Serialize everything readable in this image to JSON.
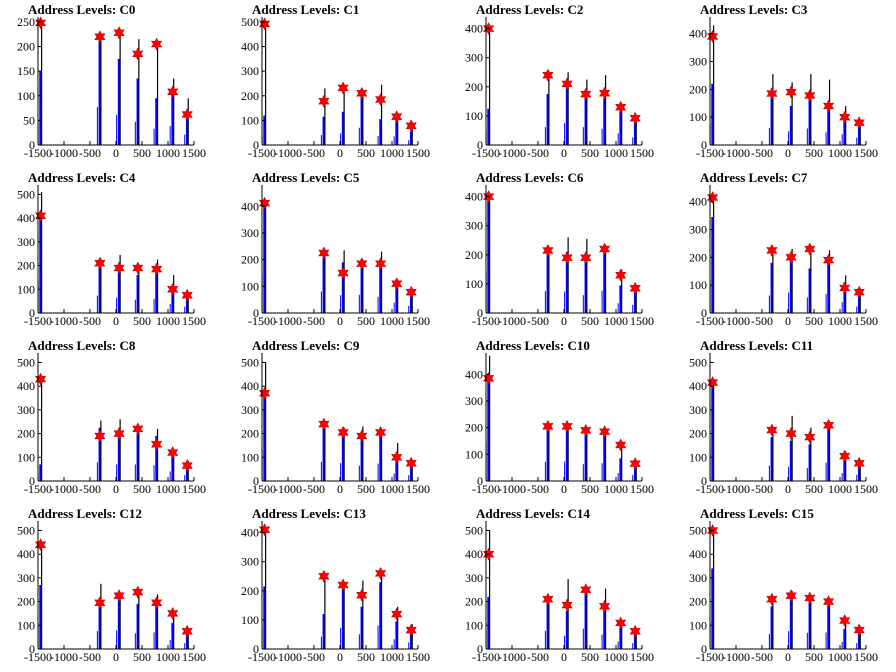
{
  "colors": {
    "sum_line": "#000000",
    "peak_line": "#0000ff",
    "marker": "#ff0000",
    "frame": "#000000"
  },
  "marker_icon": "red-star-marker",
  "x_ticks": [
    "-1500",
    "-1000",
    "-500",
    "0",
    "500",
    "1000",
    "1500"
  ],
  "chart_data": [
    {
      "type": "histogram",
      "title": "Address Levels: C0",
      "xlim": [
        -1500,
        1500
      ],
      "ylim": [
        0,
        260
      ],
      "y_ticks": [
        0,
        50,
        100,
        150,
        200,
        250
      ],
      "peaks": [
        {
          "x": -1450,
          "total": 255,
          "component": 150,
          "marker": 248
        },
        {
          "x": -310,
          "total": 222,
          "component": 220,
          "marker": 220
        },
        {
          "x": 60,
          "total": 235,
          "component": 175,
          "marker": 228
        },
        {
          "x": 420,
          "total": 215,
          "component": 135,
          "marker": 185
        },
        {
          "x": 780,
          "total": 205,
          "component": 95,
          "marker": 205
        },
        {
          "x": 1090,
          "total": 135,
          "component": 110,
          "marker": 108
        },
        {
          "x": 1370,
          "total": 95,
          "component": 60,
          "marker": 62
        }
      ]
    },
    {
      "type": "histogram",
      "title": "Address Levels: C1",
      "xlim": [
        -1500,
        1500
      ],
      "ylim": [
        0,
        520
      ],
      "y_ticks": [
        0,
        100,
        200,
        300,
        400,
        500
      ],
      "peaks": [
        {
          "x": -1450,
          "total": 500,
          "component": 120,
          "marker": 492
        },
        {
          "x": -310,
          "total": 230,
          "component": 115,
          "marker": 178
        },
        {
          "x": 60,
          "total": 240,
          "component": 135,
          "marker": 232
        },
        {
          "x": 420,
          "total": 215,
          "component": 200,
          "marker": 210
        },
        {
          "x": 780,
          "total": 245,
          "component": 105,
          "marker": 185
        },
        {
          "x": 1090,
          "total": 125,
          "component": 100,
          "marker": 115
        },
        {
          "x": 1370,
          "total": 85,
          "component": 55,
          "marker": 78
        }
      ]
    },
    {
      "type": "histogram",
      "title": "Address Levels: C2",
      "xlim": [
        -1500,
        1500
      ],
      "ylim": [
        0,
        440
      ],
      "y_ticks": [
        0,
        100,
        200,
        300,
        400
      ],
      "peaks": [
        {
          "x": -1450,
          "total": 410,
          "component": 125,
          "marker": 400
        },
        {
          "x": -310,
          "total": 255,
          "component": 175,
          "marker": 240
        },
        {
          "x": 60,
          "total": 250,
          "component": 215,
          "marker": 210
        },
        {
          "x": 420,
          "total": 225,
          "component": 175,
          "marker": 175
        },
        {
          "x": 780,
          "total": 240,
          "component": 160,
          "marker": 178
        },
        {
          "x": 1090,
          "total": 140,
          "component": 115,
          "marker": 130
        },
        {
          "x": 1370,
          "total": 100,
          "component": 75,
          "marker": 92
        }
      ]
    },
    {
      "type": "histogram",
      "title": "Address Levels: C3",
      "xlim": [
        -1500,
        1500
      ],
      "ylim": [
        0,
        460
      ],
      "y_ticks": [
        0,
        100,
        200,
        300,
        400
      ],
      "peaks": [
        {
          "x": -1450,
          "total": 430,
          "component": 220,
          "marker": 390
        },
        {
          "x": -310,
          "total": 255,
          "component": 175,
          "marker": 185
        },
        {
          "x": 60,
          "total": 225,
          "component": 140,
          "marker": 190
        },
        {
          "x": 420,
          "total": 255,
          "component": 170,
          "marker": 178
        },
        {
          "x": 780,
          "total": 235,
          "component": 130,
          "marker": 140
        },
        {
          "x": 1090,
          "total": 140,
          "component": 110,
          "marker": 100
        },
        {
          "x": 1370,
          "total": 90,
          "component": 75,
          "marker": 80
        }
      ]
    },
    {
      "type": "histogram",
      "title": "Address Levels: C4",
      "xlim": [
        -1500,
        1500
      ],
      "ylim": [
        0,
        540
      ],
      "y_ticks": [
        0,
        100,
        200,
        300,
        400,
        500
      ],
      "peaks": [
        {
          "x": -1450,
          "total": 510,
          "component": 400,
          "marker": 410
        },
        {
          "x": -310,
          "total": 230,
          "component": 210,
          "marker": 210
        },
        {
          "x": 60,
          "total": 245,
          "component": 185,
          "marker": 190
        },
        {
          "x": 420,
          "total": 200,
          "component": 160,
          "marker": 190
        },
        {
          "x": 780,
          "total": 225,
          "component": 170,
          "marker": 185
        },
        {
          "x": 1090,
          "total": 160,
          "component": 110,
          "marker": 100
        },
        {
          "x": 1370,
          "total": 90,
          "component": 75,
          "marker": 75
        }
      ]
    },
    {
      "type": "histogram",
      "title": "Address Levels: C5",
      "xlim": [
        -1500,
        1500
      ],
      "ylim": [
        0,
        480
      ],
      "y_ticks": [
        0,
        100,
        200,
        300,
        400
      ],
      "peaks": [
        {
          "x": -1450,
          "total": 415,
          "component": 400,
          "marker": 412
        },
        {
          "x": -310,
          "total": 230,
          "component": 230,
          "marker": 225
        },
        {
          "x": 60,
          "total": 235,
          "component": 190,
          "marker": 150
        },
        {
          "x": 420,
          "total": 200,
          "component": 195,
          "marker": 185
        },
        {
          "x": 780,
          "total": 230,
          "component": 175,
          "marker": 185
        },
        {
          "x": 1090,
          "total": 125,
          "component": 110,
          "marker": 110
        },
        {
          "x": 1370,
          "total": 90,
          "component": 75,
          "marker": 78
        }
      ]
    },
    {
      "type": "histogram",
      "title": "Address Levels: C6",
      "xlim": [
        -1500,
        1500
      ],
      "ylim": [
        0,
        440
      ],
      "y_ticks": [
        0,
        100,
        200,
        300,
        400
      ],
      "peaks": [
        {
          "x": -1450,
          "total": 410,
          "component": 405,
          "marker": 400
        },
        {
          "x": -310,
          "total": 225,
          "component": 215,
          "marker": 215
        },
        {
          "x": 60,
          "total": 260,
          "component": 210,
          "marker": 190
        },
        {
          "x": 420,
          "total": 255,
          "component": 175,
          "marker": 190
        },
        {
          "x": 780,
          "total": 225,
          "component": 220,
          "marker": 220
        },
        {
          "x": 1090,
          "total": 150,
          "component": 95,
          "marker": 130
        },
        {
          "x": 1370,
          "total": 95,
          "component": 80,
          "marker": 85
        }
      ]
    },
    {
      "type": "histogram",
      "title": "Address Levels: C7",
      "xlim": [
        -1500,
        1500
      ],
      "ylim": [
        0,
        460
      ],
      "y_ticks": [
        0,
        100,
        200,
        300,
        400
      ],
      "peaks": [
        {
          "x": -1450,
          "total": 425,
          "component": 345,
          "marker": 415
        },
        {
          "x": -310,
          "total": 230,
          "component": 180,
          "marker": 225
        },
        {
          "x": 60,
          "total": 230,
          "component": 210,
          "marker": 200
        },
        {
          "x": 420,
          "total": 230,
          "component": 160,
          "marker": 230
        },
        {
          "x": 780,
          "total": 225,
          "component": 195,
          "marker": 190
        },
        {
          "x": 1090,
          "total": 135,
          "component": 110,
          "marker": 90
        },
        {
          "x": 1370,
          "total": 80,
          "component": 65,
          "marker": 75
        }
      ]
    },
    {
      "type": "histogram",
      "title": "Address Levels: C8",
      "xlim": [
        -1500,
        1500
      ],
      "ylim": [
        0,
        540
      ],
      "y_ticks": [
        0,
        100,
        200,
        300,
        400,
        500
      ],
      "peaks": [
        {
          "x": -1450,
          "total": 440,
          "component": 70,
          "marker": 430
        },
        {
          "x": -310,
          "total": 255,
          "component": 225,
          "marker": 190
        },
        {
          "x": 60,
          "total": 260,
          "component": 200,
          "marker": 200
        },
        {
          "x": 420,
          "total": 225,
          "component": 200,
          "marker": 220
        },
        {
          "x": 780,
          "total": 220,
          "component": 190,
          "marker": 155
        },
        {
          "x": 1090,
          "total": 130,
          "component": 115,
          "marker": 120
        },
        {
          "x": 1370,
          "total": 85,
          "component": 70,
          "marker": 65
        }
      ]
    },
    {
      "type": "histogram",
      "title": "Address Levels: C9",
      "xlim": [
        -1500,
        1500
      ],
      "ylim": [
        0,
        540
      ],
      "y_ticks": [
        0,
        100,
        200,
        300,
        400,
        500
      ],
      "peaks": [
        {
          "x": -1450,
          "total": 500,
          "component": 370,
          "marker": 370
        },
        {
          "x": -310,
          "total": 250,
          "component": 230,
          "marker": 240
        },
        {
          "x": 60,
          "total": 225,
          "component": 215,
          "marker": 205
        },
        {
          "x": 420,
          "total": 230,
          "component": 185,
          "marker": 190
        },
        {
          "x": 780,
          "total": 215,
          "component": 210,
          "marker": 205
        },
        {
          "x": 1090,
          "total": 160,
          "component": 90,
          "marker": 100
        },
        {
          "x": 1370,
          "total": 90,
          "component": 70,
          "marker": 75
        }
      ]
    },
    {
      "type": "histogram",
      "title": "Address Levels: C10",
      "xlim": [
        -1500,
        1500
      ],
      "ylim": [
        0,
        480
      ],
      "y_ticks": [
        0,
        100,
        200,
        300,
        400
      ],
      "peaks": [
        {
          "x": -1450,
          "total": 470,
          "component": 400,
          "marker": 385
        },
        {
          "x": -310,
          "total": 215,
          "component": 205,
          "marker": 205
        },
        {
          "x": 60,
          "total": 215,
          "component": 210,
          "marker": 205
        },
        {
          "x": 420,
          "total": 195,
          "component": 180,
          "marker": 190
        },
        {
          "x": 780,
          "total": 195,
          "component": 190,
          "marker": 185
        },
        {
          "x": 1090,
          "total": 150,
          "component": 85,
          "marker": 135
        },
        {
          "x": 1370,
          "total": 75,
          "component": 65,
          "marker": 65
        }
      ]
    },
    {
      "type": "histogram",
      "title": "Address Levels: C11",
      "xlim": [
        -1500,
        1500
      ],
      "ylim": [
        0,
        540
      ],
      "y_ticks": [
        0,
        100,
        200,
        300,
        400,
        500
      ],
      "peaks": [
        {
          "x": -1450,
          "total": 430,
          "component": 415,
          "marker": 415
        },
        {
          "x": -310,
          "total": 225,
          "component": 185,
          "marker": 215
        },
        {
          "x": 60,
          "total": 275,
          "component": 170,
          "marker": 200
        },
        {
          "x": 420,
          "total": 225,
          "component": 155,
          "marker": 185
        },
        {
          "x": 780,
          "total": 240,
          "component": 220,
          "marker": 235
        },
        {
          "x": 1090,
          "total": 125,
          "component": 95,
          "marker": 105
        },
        {
          "x": 1370,
          "total": 85,
          "component": 75,
          "marker": 75
        }
      ]
    },
    {
      "type": "histogram",
      "title": "Address Levels: C12",
      "xlim": [
        -1500,
        1500
      ],
      "ylim": [
        0,
        540
      ],
      "y_ticks": [
        0,
        100,
        200,
        300,
        400,
        500
      ],
      "peaks": [
        {
          "x": -1450,
          "total": 450,
          "component": 270,
          "marker": 440
        },
        {
          "x": -310,
          "total": 275,
          "component": 215,
          "marker": 195
        },
        {
          "x": 60,
          "total": 230,
          "component": 225,
          "marker": 225
        },
        {
          "x": 420,
          "total": 245,
          "component": 190,
          "marker": 240
        },
        {
          "x": 780,
          "total": 230,
          "component": 200,
          "marker": 195
        },
        {
          "x": 1090,
          "total": 155,
          "component": 110,
          "marker": 150
        },
        {
          "x": 1370,
          "total": 80,
          "component": 70,
          "marker": 75
        }
      ]
    },
    {
      "type": "histogram",
      "title": "Address Levels: C13",
      "xlim": [
        -1500,
        1500
      ],
      "ylim": [
        0,
        440
      ],
      "y_ticks": [
        0,
        100,
        200,
        300,
        400
      ],
      "peaks": [
        {
          "x": -1450,
          "total": 415,
          "component": 215,
          "marker": 410
        },
        {
          "x": -310,
          "total": 255,
          "component": 120,
          "marker": 250
        },
        {
          "x": 60,
          "total": 230,
          "component": 205,
          "marker": 220
        },
        {
          "x": 420,
          "total": 235,
          "component": 145,
          "marker": 185
        },
        {
          "x": 780,
          "total": 265,
          "component": 230,
          "marker": 260
        },
        {
          "x": 1090,
          "total": 145,
          "component": 95,
          "marker": 120
        },
        {
          "x": 1370,
          "total": 85,
          "component": 65,
          "marker": 65
        }
      ]
    },
    {
      "type": "histogram",
      "title": "Address Levels: C14",
      "xlim": [
        -1500,
        1500
      ],
      "ylim": [
        0,
        540
      ],
      "y_ticks": [
        0,
        100,
        200,
        300,
        400,
        500
      ],
      "peaks": [
        {
          "x": -1450,
          "total": 500,
          "component": 220,
          "marker": 400
        },
        {
          "x": -310,
          "total": 225,
          "component": 220,
          "marker": 210
        },
        {
          "x": 60,
          "total": 295,
          "component": 160,
          "marker": 185
        },
        {
          "x": 420,
          "total": 250,
          "component": 245,
          "marker": 250
        },
        {
          "x": 780,
          "total": 255,
          "component": 175,
          "marker": 180
        },
        {
          "x": 1090,
          "total": 120,
          "component": 90,
          "marker": 110
        },
        {
          "x": 1370,
          "total": 80,
          "component": 70,
          "marker": 75
        }
      ]
    },
    {
      "type": "histogram",
      "title": "Address Levels: C15",
      "xlim": [
        -1500,
        1500
      ],
      "ylim": [
        0,
        540
      ],
      "y_ticks": [
        0,
        100,
        200,
        300,
        400,
        500
      ],
      "peaks": [
        {
          "x": -1450,
          "total": 505,
          "component": 340,
          "marker": 500
        },
        {
          "x": -310,
          "total": 225,
          "component": 180,
          "marker": 210
        },
        {
          "x": 60,
          "total": 245,
          "component": 215,
          "marker": 225
        },
        {
          "x": 420,
          "total": 225,
          "component": 195,
          "marker": 215
        },
        {
          "x": 780,
          "total": 210,
          "component": 200,
          "marker": 200
        },
        {
          "x": 1090,
          "total": 130,
          "component": 85,
          "marker": 120
        },
        {
          "x": 1370,
          "total": 90,
          "component": 70,
          "marker": 80
        }
      ]
    }
  ]
}
